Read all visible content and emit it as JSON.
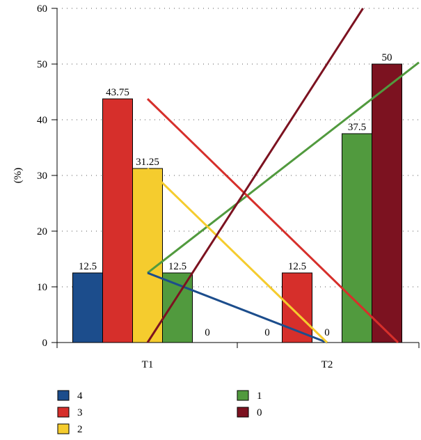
{
  "chart_data": {
    "type": "bar",
    "categories": [
      "T1",
      "T2"
    ],
    "ylabel": "(%)",
    "xlabel": "",
    "ylim": [
      0,
      60
    ],
    "yticks": [
      0,
      10,
      20,
      30,
      40,
      50,
      60
    ],
    "grid": "dotted",
    "legend_position": "bottom",
    "series": [
      {
        "name": "4",
        "color": "#1c4d8c",
        "values": [
          12.5,
          0
        ],
        "labels": [
          "12.5",
          "0"
        ]
      },
      {
        "name": "3",
        "color": "#d62f2b",
        "values": [
          43.75,
          12.5
        ],
        "labels": [
          "43.75",
          "12.5"
        ]
      },
      {
        "name": "2",
        "color": "#f5cc2e",
        "values": [
          31.25,
          0
        ],
        "labels": [
          "31.25",
          "0"
        ]
      },
      {
        "name": "1",
        "color": "#519a3e",
        "values": [
          12.5,
          37.5
        ],
        "labels": [
          "12.5",
          "37.5"
        ]
      },
      {
        "name": "0",
        "color": "#7c1220",
        "values": [
          0,
          50
        ],
        "labels": [
          "0",
          "50"
        ]
      }
    ],
    "trend_lines": true
  }
}
